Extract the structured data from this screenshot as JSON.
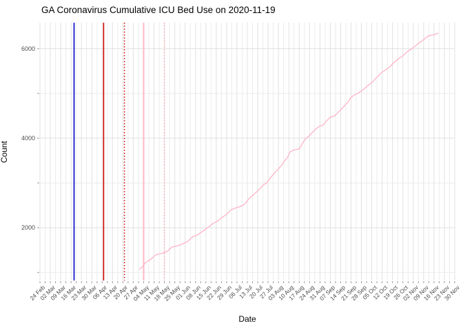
{
  "title": "GA Coronavirus Cumulative ICU Bed Use on 2020-11-19",
  "chart_data": {
    "type": "line",
    "title": "GA Coronavirus Cumulative ICU Bed Use on 2020-11-19",
    "xlabel": "Date",
    "ylabel": "Count",
    "grid": true,
    "legend": false,
    "x_range": {
      "start": "2020-02-24",
      "end": "2020-11-30"
    },
    "ylim": [
      820,
      6580
    ],
    "y_ticks": [
      2000,
      4000,
      6000
    ],
    "y_minor_ticks": [
      1000,
      3000,
      5000
    ],
    "x_tick_labels": [
      "24 Feb",
      "02 Mar",
      "09 Mar",
      "16 Mar",
      "23 Mar",
      "30 Mar",
      "06 Apr",
      "13 Apr",
      "20 Apr",
      "27 Apr",
      "04 May",
      "11 May",
      "18 May",
      "25 May",
      "01 Jun",
      "08 Jun",
      "15 Jun",
      "22 Jun",
      "29 Jun",
      "06 Jul",
      "13 Jul",
      "20 Jul",
      "27 Jul",
      "03 Aug",
      "10 Aug",
      "17 Aug",
      "24 Aug",
      "31 Aug",
      "07 Sep",
      "14 Sep",
      "21 Sep",
      "28 Sep",
      "05 Oct",
      "12 Oct",
      "19 Oct",
      "26 Oct",
      "02 Nov",
      "09 Nov",
      "16 Nov",
      "23 Nov",
      "30 Nov"
    ],
    "vlines": [
      {
        "name": "blue-solid-marker",
        "date": "2020-03-18",
        "color": "#0000CD",
        "style": "solid",
        "width": 1.6
      },
      {
        "name": "red-solid-marker",
        "date": "2020-04-07",
        "color": "#CC0000",
        "style": "solid",
        "width": 1.6
      },
      {
        "name": "red-dotted-marker",
        "date": "2020-04-21",
        "color": "#CC0000",
        "style": "dotted",
        "width": 1.6
      },
      {
        "name": "pink-solid-marker",
        "date": "2020-05-04",
        "color": "#FFB6C1",
        "style": "solid",
        "width": 2
      },
      {
        "name": "pink-dotted-marker",
        "date": "2020-05-18",
        "color": "#FFB6C1",
        "style": "dotted",
        "width": 2
      }
    ],
    "series": [
      {
        "name": "cumulative-icu-beds",
        "color": "#FFB3C6",
        "points": [
          [
            "2020-05-01",
            1070
          ],
          [
            "2020-05-03",
            1120
          ],
          [
            "2020-05-05",
            1210
          ],
          [
            "2020-05-07",
            1260
          ],
          [
            "2020-05-09",
            1300
          ],
          [
            "2020-05-12",
            1390
          ],
          [
            "2020-05-14",
            1410
          ],
          [
            "2020-05-16",
            1420
          ],
          [
            "2020-05-19",
            1455
          ],
          [
            "2020-05-21",
            1500
          ],
          [
            "2020-05-23",
            1565
          ],
          [
            "2020-05-26",
            1590
          ],
          [
            "2020-05-28",
            1605
          ],
          [
            "2020-05-31",
            1650
          ],
          [
            "2020-06-03",
            1700
          ],
          [
            "2020-06-06",
            1800
          ],
          [
            "2020-06-09",
            1830
          ],
          [
            "2020-06-12",
            1900
          ],
          [
            "2020-06-15",
            1975
          ],
          [
            "2020-06-17",
            2020
          ],
          [
            "2020-06-20",
            2100
          ],
          [
            "2020-06-23",
            2150
          ],
          [
            "2020-06-26",
            2230
          ],
          [
            "2020-06-29",
            2300
          ],
          [
            "2020-07-02",
            2400
          ],
          [
            "2020-07-05",
            2440
          ],
          [
            "2020-07-08",
            2470
          ],
          [
            "2020-07-11",
            2520
          ],
          [
            "2020-07-13",
            2600
          ],
          [
            "2020-07-15",
            2680
          ],
          [
            "2020-07-17",
            2730
          ],
          [
            "2020-07-19",
            2790
          ],
          [
            "2020-07-22",
            2890
          ],
          [
            "2020-07-24",
            2960
          ],
          [
            "2020-07-26",
            3000
          ],
          [
            "2020-07-28",
            3090
          ],
          [
            "2020-07-31",
            3210
          ],
          [
            "2020-08-02",
            3280
          ],
          [
            "2020-08-05",
            3390
          ],
          [
            "2020-08-07",
            3490
          ],
          [
            "2020-08-09",
            3570
          ],
          [
            "2020-08-11",
            3700
          ],
          [
            "2020-08-13",
            3730
          ],
          [
            "2020-08-15",
            3745
          ],
          [
            "2020-08-17",
            3760
          ],
          [
            "2020-08-19",
            3870
          ],
          [
            "2020-08-21",
            3975
          ],
          [
            "2020-08-24",
            4060
          ],
          [
            "2020-08-26",
            4130
          ],
          [
            "2020-08-28",
            4200
          ],
          [
            "2020-08-31",
            4270
          ],
          [
            "2020-09-02",
            4290
          ],
          [
            "2020-09-04",
            4370
          ],
          [
            "2020-09-07",
            4470
          ],
          [
            "2020-09-10",
            4500
          ],
          [
            "2020-09-13",
            4600
          ],
          [
            "2020-09-16",
            4700
          ],
          [
            "2020-09-19",
            4810
          ],
          [
            "2020-09-21",
            4910
          ],
          [
            "2020-09-23",
            4960
          ],
          [
            "2020-09-26",
            5010
          ],
          [
            "2020-09-29",
            5080
          ],
          [
            "2020-10-02",
            5165
          ],
          [
            "2020-10-05",
            5240
          ],
          [
            "2020-10-08",
            5345
          ],
          [
            "2020-10-11",
            5450
          ],
          [
            "2020-10-14",
            5520
          ],
          [
            "2020-10-17",
            5590
          ],
          [
            "2020-10-20",
            5690
          ],
          [
            "2020-10-23",
            5770
          ],
          [
            "2020-10-26",
            5845
          ],
          [
            "2020-10-29",
            5930
          ],
          [
            "2020-11-01",
            6000
          ],
          [
            "2020-11-03",
            6050
          ],
          [
            "2020-11-06",
            6130
          ],
          [
            "2020-11-09",
            6200
          ],
          [
            "2020-11-12",
            6280
          ],
          [
            "2020-11-14",
            6300
          ],
          [
            "2020-11-16",
            6310
          ],
          [
            "2020-11-19",
            6350
          ]
        ]
      }
    ],
    "colors": {
      "background": "#FFFFFF",
      "grid_major": "#E0E0E0",
      "grid_minor": "#EBEBEB",
      "tick_mark": "#999999",
      "tick_text": "#4D4D4D",
      "text": "#000000"
    }
  }
}
